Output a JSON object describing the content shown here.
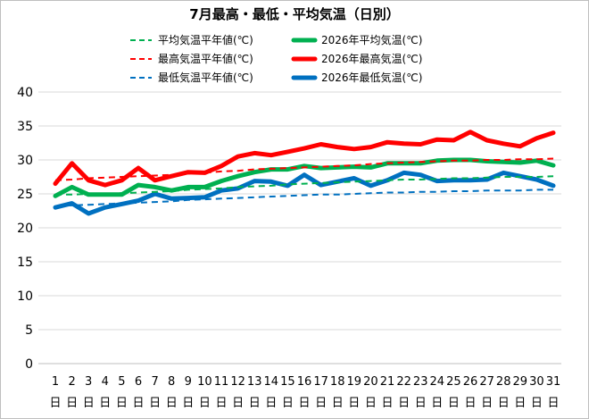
{
  "chart_data": {
    "type": "line",
    "title": "7月最高・最低・平均気温（日別）",
    "xlabel": "",
    "ylabel": "",
    "ylim": [
      0,
      40
    ],
    "yticks": [
      0,
      5,
      10,
      15,
      20,
      25,
      30,
      35,
      40
    ],
    "grid": true,
    "legend_position": "top",
    "day_suffix": "日",
    "x": [
      1,
      2,
      3,
      4,
      5,
      6,
      7,
      8,
      9,
      10,
      11,
      12,
      13,
      14,
      15,
      16,
      17,
      18,
      19,
      20,
      21,
      22,
      23,
      24,
      25,
      26,
      27,
      28,
      29,
      30,
      31
    ],
    "series": [
      {
        "name": "平均気温平年値(℃)",
        "style": "dashed",
        "color": "#00b050",
        "values": [
          24.9,
          24.9,
          25.0,
          25.0,
          25.1,
          25.2,
          25.3,
          25.4,
          25.6,
          25.7,
          25.8,
          26.0,
          26.1,
          26.2,
          26.4,
          26.5,
          26.6,
          26.7,
          26.8,
          26.9,
          27.0,
          27.1,
          27.1,
          27.2,
          27.3,
          27.3,
          27.4,
          27.5,
          27.5,
          27.5,
          27.6
        ]
      },
      {
        "name": "最高気温平年値(℃)",
        "style": "dashed",
        "color": "#ff0000",
        "values": [
          27.0,
          27.1,
          27.3,
          27.4,
          27.5,
          27.6,
          27.7,
          27.8,
          28.0,
          28.1,
          28.3,
          28.4,
          28.6,
          28.7,
          28.8,
          28.9,
          29.0,
          29.1,
          29.2,
          29.4,
          29.5,
          29.6,
          29.7,
          29.8,
          29.9,
          29.9,
          30.0,
          30.0,
          30.1,
          30.1,
          30.2
        ]
      },
      {
        "name": "最低気温平年値(℃)",
        "style": "dashed",
        "color": "#0070c0",
        "values": [
          23.2,
          23.3,
          23.4,
          23.5,
          23.6,
          23.7,
          23.8,
          23.9,
          24.1,
          24.2,
          24.3,
          24.4,
          24.5,
          24.6,
          24.7,
          24.8,
          24.9,
          24.9,
          25.0,
          25.1,
          25.2,
          25.2,
          25.3,
          25.3,
          25.4,
          25.4,
          25.5,
          25.5,
          25.5,
          25.6,
          25.6
        ]
      },
      {
        "name": "2026年平均気温(℃)",
        "style": "solid",
        "color": "#00b050",
        "values": [
          24.7,
          26.0,
          24.9,
          24.9,
          24.9,
          26.3,
          26.0,
          25.5,
          26.0,
          26.0,
          26.9,
          27.6,
          28.2,
          28.6,
          28.6,
          29.1,
          28.8,
          28.9,
          29.0,
          28.9,
          29.5,
          29.5,
          29.5,
          29.9,
          30.0,
          30.0,
          29.8,
          29.7,
          29.6,
          29.9,
          29.2
        ]
      },
      {
        "name": "2026年最高気温(℃)",
        "style": "solid",
        "color": "#ff0000",
        "values": [
          26.5,
          29.5,
          27.0,
          26.3,
          27.0,
          28.8,
          27.0,
          27.6,
          28.2,
          28.1,
          29.1,
          30.5,
          31.0,
          30.7,
          31.2,
          31.7,
          32.3,
          31.9,
          31.6,
          31.9,
          32.6,
          32.4,
          32.3,
          33.0,
          32.9,
          34.1,
          32.9,
          32.4,
          32.0,
          33.2,
          34.0
        ]
      },
      {
        "name": "2026年最低気温(℃)",
        "style": "solid",
        "color": "#0070c0",
        "values": [
          23.0,
          23.6,
          22.1,
          23.0,
          23.5,
          24.0,
          25.0,
          24.3,
          24.4,
          24.5,
          25.5,
          25.8,
          26.9,
          26.8,
          26.2,
          27.8,
          26.3,
          26.8,
          27.3,
          26.2,
          27.0,
          28.1,
          27.8,
          26.9,
          27.0,
          27.0,
          27.1,
          28.1,
          27.6,
          27.1,
          26.2
        ]
      }
    ]
  }
}
